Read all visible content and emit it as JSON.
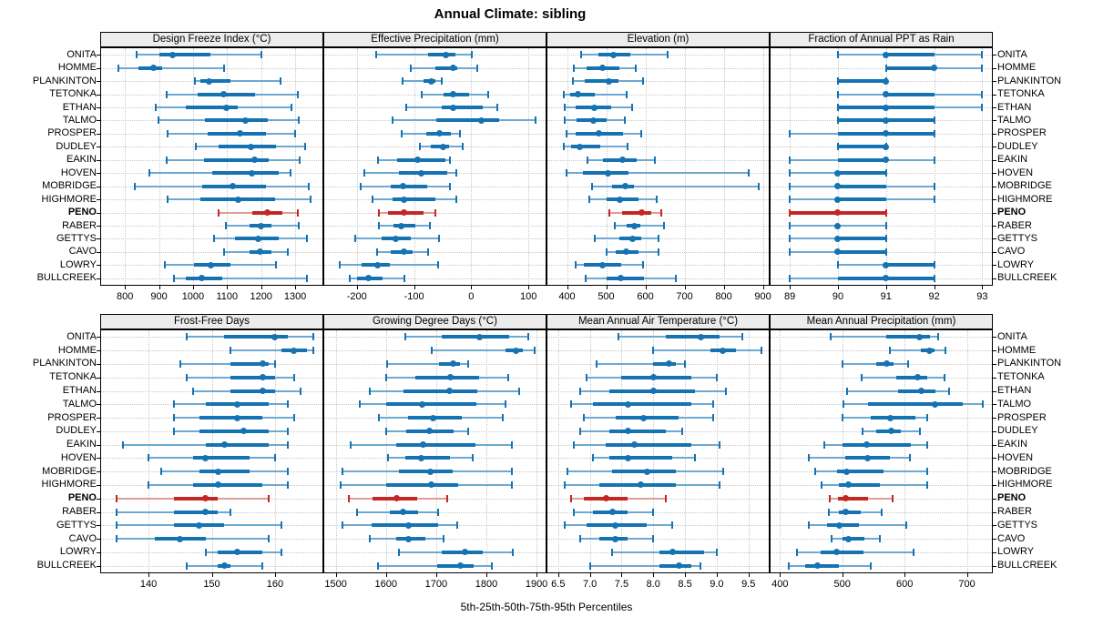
{
  "title": "Annual Climate: sibling",
  "caption": "5th-25th-50th-75th-95th Percentiles",
  "percentile_labels": [
    "p5",
    "p25",
    "p50",
    "p75",
    "p95"
  ],
  "stations": [
    "ONITA",
    "HOMME",
    "PLANKINTON",
    "TETONKA",
    "ETHAN",
    "TALMO",
    "PROSPER",
    "DUDLEY",
    "EAKIN",
    "HOVEN",
    "MOBRIDGE",
    "HIGHMORE",
    "PENO",
    "RABER",
    "GETTYS",
    "CAVO",
    "LOWRY",
    "BULLCREEK"
  ],
  "highlight_station": "PENO",
  "colors": {
    "main": "#1673b1",
    "light": "#6fa9d2",
    "highlight": "#c32724",
    "highlight_light": "#e09c98",
    "grid": "#c8c8c8",
    "strip_bg": "#ececec",
    "border": "#000000"
  },
  "chart_data": [
    {
      "type": "dotplot-percentiles",
      "row": 0,
      "col": 0,
      "title": "Design Freeze Index (°C)",
      "xmin": 730,
      "xmax": 1380,
      "ticks": [
        800,
        900,
        1000,
        1100,
        1200,
        1300
      ],
      "tick_labels": [
        "800",
        "900",
        "1000",
        "1100",
        "1200",
        "1300"
      ],
      "values": [
        [
          833,
          900,
          941,
          1052,
          1200
        ],
        [
          780,
          840,
          884,
          908,
          1090
        ],
        [
          1005,
          1022,
          1046,
          1110,
          1257
        ],
        [
          922,
          1013,
          1091,
          1183,
          1308
        ],
        [
          891,
          978,
          1098,
          1131,
          1289
        ],
        [
          898,
          1035,
          1155,
          1220,
          1310
        ],
        [
          926,
          1043,
          1139,
          1213,
          1300
        ],
        [
          1009,
          1074,
          1171,
          1244,
          1330
        ],
        [
          922,
          1031,
          1180,
          1222,
          1313
        ],
        [
          872,
          1057,
          1174,
          1252,
          1287
        ],
        [
          830,
          1026,
          1116,
          1213,
          1339
        ],
        [
          926,
          1022,
          1133,
          1240,
          1344
        ],
        [
          1074,
          1174,
          1217,
          1261,
          1309
        ],
        [
          1096,
          1165,
          1200,
          1230,
          1310
        ],
        [
          1061,
          1122,
          1191,
          1252,
          1335
        ],
        [
          1091,
          1165,
          1196,
          1230,
          1278
        ],
        [
          917,
          1004,
          1053,
          1110,
          1244
        ],
        [
          944,
          978,
          1026,
          1087,
          1335
        ]
      ]
    },
    {
      "type": "dotplot-percentiles",
      "row": 0,
      "col": 1,
      "title": "Effective Precipitation (mm)",
      "xmin": -257,
      "xmax": 130,
      "ticks": [
        -200,
        -100,
        0,
        100
      ],
      "tick_labels": [
        "-200",
        "-100",
        "0",
        "100"
      ],
      "values": [
        [
          -166,
          -76,
          -44,
          -28,
          1
        ],
        [
          -105,
          -62,
          -31,
          -25,
          11
        ],
        [
          -120,
          -84,
          -70,
          -62,
          -52
        ],
        [
          -86,
          -49,
          -31,
          -4,
          29
        ],
        [
          -113,
          -52,
          -31,
          20,
          45
        ],
        [
          -137,
          -61,
          17,
          48,
          113
        ],
        [
          -122,
          -78,
          -55,
          -36,
          -19
        ],
        [
          -90,
          -70,
          -49,
          -38,
          -15
        ],
        [
          -163,
          -129,
          -93,
          -45,
          -37
        ],
        [
          -187,
          -127,
          -88,
          -42,
          -26
        ],
        [
          -194,
          -141,
          -120,
          -77,
          -38
        ],
        [
          -173,
          -138,
          -117,
          -63,
          -26
        ],
        [
          -161,
          -146,
          -118,
          -84,
          -63
        ],
        [
          -162,
          -136,
          -123,
          -98,
          -72
        ],
        [
          -203,
          -157,
          -132,
          -106,
          -56
        ],
        [
          -164,
          -141,
          -117,
          -102,
          -76
        ],
        [
          -230,
          -191,
          -164,
          -143,
          -58
        ],
        [
          -212,
          -199,
          -179,
          -155,
          -117
        ]
      ]
    },
    {
      "type": "dotplot-percentiles",
      "row": 0,
      "col": 2,
      "title": "Elevation (m)",
      "xmin": 350,
      "xmax": 915,
      "ticks": [
        400,
        500,
        600,
        700,
        800,
        900
      ],
      "tick_labels": [
        "400",
        "500",
        "600",
        "700",
        "800",
        "900"
      ],
      "values": [
        [
          436,
          481,
          518,
          562,
          656
        ],
        [
          418,
          450,
          490,
          533,
          575
        ],
        [
          415,
          446,
          508,
          531,
          595
        ],
        [
          393,
          408,
          427,
          472,
          552
        ],
        [
          395,
          421,
          469,
          513,
          567
        ],
        [
          395,
          425,
          467,
          502,
          548
        ],
        [
          398,
          421,
          482,
          544,
          590
        ],
        [
          392,
          410,
          433,
          485,
          554
        ],
        [
          452,
          492,
          541,
          577,
          625
        ],
        [
          398,
          441,
          504,
          556,
          864
        ],
        [
          464,
          515,
          548,
          572,
          890
        ],
        [
          456,
          502,
          535,
          582,
          628
        ],
        [
          508,
          541,
          590,
          615,
          641
        ],
        [
          521,
          552,
          572,
          587,
          648
        ],
        [
          472,
          533,
          567,
          590,
          633
        ],
        [
          500,
          525,
          552,
          582,
          633
        ],
        [
          421,
          444,
          490,
          538,
          595
        ],
        [
          448,
          500,
          538,
          596,
          679
        ]
      ]
    },
    {
      "type": "dotplot-percentiles",
      "row": 0,
      "col": 3,
      "title": "Fraction of Annual PPT as Rain",
      "xmin": 88.6,
      "xmax": 93.2,
      "ticks": [
        89,
        90,
        91,
        92,
        93
      ],
      "tick_labels": [
        "89",
        "90",
        "91",
        "92",
        "93"
      ],
      "values": [
        [
          90,
          91,
          91,
          92,
          93
        ],
        [
          91,
          91,
          92,
          92,
          93
        ],
        [
          90,
          90,
          91,
          91,
          91
        ],
        [
          90,
          91,
          91,
          92,
          93
        ],
        [
          90,
          90,
          91,
          92,
          93
        ],
        [
          90,
          90,
          91,
          92,
          92
        ],
        [
          89,
          90,
          91,
          92,
          92
        ],
        [
          90,
          90,
          91,
          91,
          91
        ],
        [
          89,
          90,
          91,
          91,
          92
        ],
        [
          89,
          90,
          90,
          91,
          91
        ],
        [
          89,
          90,
          90,
          91,
          92
        ],
        [
          89,
          90,
          90,
          91,
          92
        ],
        [
          89,
          89,
          90,
          91,
          91
        ],
        [
          89,
          90,
          90,
          90,
          91
        ],
        [
          89,
          90,
          90,
          91,
          91
        ],
        [
          89,
          90,
          90,
          91,
          91
        ],
        [
          90,
          91,
          91,
          92,
          92
        ],
        [
          89,
          90,
          91,
          92,
          92
        ]
      ]
    },
    {
      "type": "dotplot-percentiles",
      "row": 1,
      "col": 0,
      "title": "Frost-Free Days",
      "xmin": 132.5,
      "xmax": 167.5,
      "ticks": [
        140,
        150,
        160
      ],
      "tick_labels": [
        "140",
        "150",
        "160"
      ],
      "values": [
        [
          146,
          152,
          160,
          162,
          166
        ],
        [
          153,
          161,
          163,
          165,
          166
        ],
        [
          145,
          153,
          158,
          159,
          160
        ],
        [
          146,
          153,
          158,
          160,
          163
        ],
        [
          147,
          153,
          158,
          160,
          164
        ],
        [
          144,
          149,
          154,
          159,
          162
        ],
        [
          144,
          148,
          154,
          158,
          163
        ],
        [
          144,
          148,
          155,
          159,
          162
        ],
        [
          136,
          149,
          152,
          159,
          162
        ],
        [
          140,
          147,
          149,
          156,
          160
        ],
        [
          142,
          148,
          151,
          156,
          162
        ],
        [
          140,
          147,
          151,
          158,
          162
        ],
        [
          135,
          144,
          149,
          151,
          159
        ],
        [
          135,
          144,
          149,
          151,
          153
        ],
        [
          135,
          144,
          148,
          152,
          161
        ],
        [
          135,
          141,
          145,
          149,
          159
        ],
        [
          149,
          151,
          154,
          158,
          161
        ],
        [
          146,
          151,
          152,
          153,
          158
        ]
      ]
    },
    {
      "type": "dotplot-percentiles",
      "row": 1,
      "col": 1,
      "title": "Growing Degree Days (°C)",
      "xmin": 1477,
      "xmax": 1918,
      "ticks": [
        1500,
        1600,
        1700,
        1800,
        1900
      ],
      "tick_labels": [
        "1500",
        "1600",
        "1700",
        "1800",
        "1900"
      ],
      "values": [
        [
          1639,
          1712,
          1787,
          1845,
          1883
        ],
        [
          1692,
          1839,
          1859,
          1872,
          1896
        ],
        [
          1603,
          1706,
          1733,
          1747,
          1763
        ],
        [
          1600,
          1658,
          1729,
          1786,
          1844
        ],
        [
          1568,
          1634,
          1726,
          1781,
          1865
        ],
        [
          1548,
          1600,
          1672,
          1780,
          1839
        ],
        [
          1586,
          1644,
          1694,
          1751,
          1832
        ],
        [
          1600,
          1640,
          1686,
          1735,
          1763
        ],
        [
          1530,
          1620,
          1674,
          1778,
          1850
        ],
        [
          1604,
          1638,
          1670,
          1728,
          1772
        ],
        [
          1514,
          1626,
          1688,
          1733,
          1851
        ],
        [
          1510,
          1600,
          1690,
          1744,
          1850
        ],
        [
          1526,
          1573,
          1621,
          1663,
          1722
        ],
        [
          1542,
          1608,
          1634,
          1664,
          1704
        ],
        [
          1514,
          1572,
          1644,
          1704,
          1742
        ],
        [
          1568,
          1620,
          1645,
          1678,
          1714
        ],
        [
          1626,
          1712,
          1757,
          1793,
          1853
        ],
        [
          1584,
          1702,
          1748,
          1775,
          1811
        ]
      ]
    },
    {
      "type": "dotplot-percentiles",
      "row": 1,
      "col": 2,
      "title": "Mean Annual Air Temperature (°C)",
      "xmin": 6.33,
      "xmax": 9.82,
      "ticks": [
        6.5,
        7.0,
        7.5,
        8.0,
        8.5,
        9.0,
        9.5
      ],
      "tick_labels": [
        "6.5",
        "7.0",
        "7.5",
        "8.0",
        "8.5",
        "9.0",
        "9.5"
      ],
      "values": [
        [
          7.45,
          8.2,
          8.75,
          9.05,
          9.4
        ],
        [
          8.0,
          8.9,
          9.1,
          9.3,
          9.7
        ],
        [
          7.1,
          8.0,
          8.25,
          8.35,
          8.5
        ],
        [
          6.95,
          7.5,
          8.0,
          8.6,
          9.0
        ],
        [
          6.85,
          7.3,
          8.0,
          8.65,
          9.15
        ],
        [
          6.7,
          7.05,
          7.6,
          8.6,
          8.95
        ],
        [
          6.9,
          7.4,
          7.85,
          8.4,
          8.95
        ],
        [
          6.85,
          7.3,
          7.6,
          8.2,
          8.45
        ],
        [
          6.75,
          7.25,
          7.7,
          8.6,
          9.05
        ],
        [
          7.05,
          7.3,
          7.6,
          8.3,
          8.65
        ],
        [
          6.65,
          7.35,
          7.9,
          8.35,
          9.1
        ],
        [
          6.6,
          7.15,
          7.8,
          8.35,
          9.05
        ],
        [
          6.7,
          6.9,
          7.25,
          7.6,
          8.2
        ],
        [
          6.75,
          7.05,
          7.35,
          7.6,
          8.0
        ],
        [
          6.6,
          6.95,
          7.4,
          7.9,
          8.3
        ],
        [
          6.85,
          7.15,
          7.4,
          7.6,
          8.0
        ],
        [
          7.35,
          8.1,
          8.3,
          8.8,
          9.0
        ],
        [
          7.0,
          8.1,
          8.4,
          8.6,
          8.75
        ]
      ]
    },
    {
      "type": "dotplot-percentiles",
      "row": 1,
      "col": 3,
      "title": "Mean Annual Precipitation (mm)",
      "xmin": 385,
      "xmax": 740,
      "ticks": [
        400,
        500,
        600,
        700
      ],
      "tick_labels": [
        "400",
        "500",
        "600",
        "700"
      ],
      "values": [
        [
          481,
          570,
          624,
          640,
          654
        ],
        [
          577,
          626,
          640,
          648,
          666
        ],
        [
          500,
          555,
          571,
          582,
          605
        ],
        [
          531,
          586,
          621,
          636,
          664
        ],
        [
          507,
          590,
          627,
          650,
          671
        ],
        [
          502,
          541,
          648,
          693,
          725
        ],
        [
          500,
          546,
          577,
          618,
          637
        ],
        [
          533,
          555,
          578,
          594,
          624
        ],
        [
          471,
          500,
          539,
          610,
          637
        ],
        [
          447,
          505,
          540,
          577,
          608
        ],
        [
          457,
          491,
          507,
          566,
          637
        ],
        [
          467,
          495,
          510,
          560,
          637
        ],
        [
          480,
          493,
          505,
          541,
          581
        ],
        [
          478,
          494,
          505,
          529,
          563
        ],
        [
          446,
          475,
          495,
          526,
          602
        ],
        [
          483,
          500,
          510,
          536,
          560
        ],
        [
          427,
          465,
          491,
          534,
          614
        ],
        [
          414,
          441,
          460,
          495,
          545
        ]
      ]
    }
  ]
}
